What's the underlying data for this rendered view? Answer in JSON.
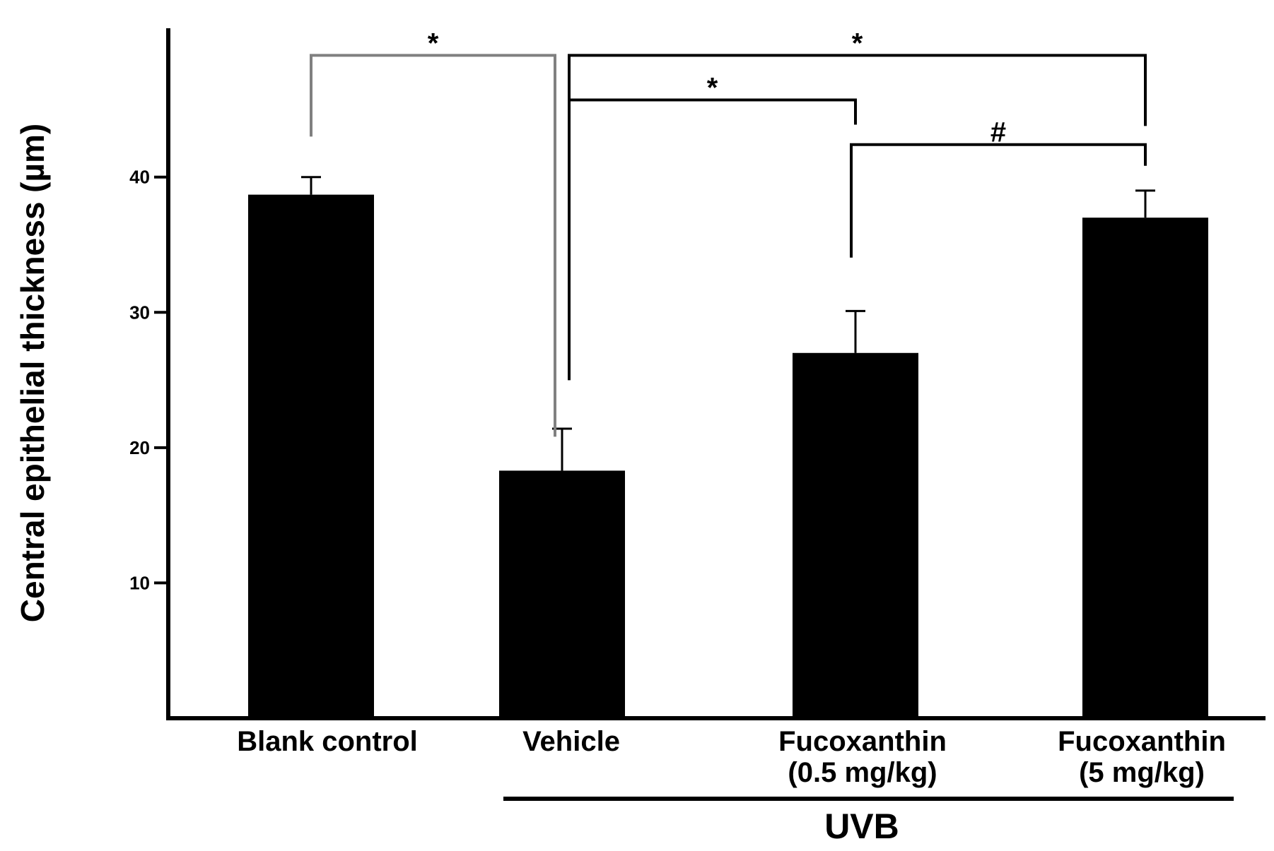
{
  "chart_data": {
    "type": "bar",
    "ylabel": "Central epithelial thickness  (µm)",
    "categories": [
      [
        "Blank control"
      ],
      [
        "Vehicle"
      ],
      [
        "Fucoxanthin",
        "(0.5 mg/kg)"
      ],
      [
        "Fucoxanthin",
        "(5 mg/kg)"
      ]
    ],
    "values": [
      38.7,
      18.3,
      27.0,
      37.0
    ],
    "errors": [
      1.3,
      3.1,
      3.1,
      2.0
    ],
    "yticks": [
      10,
      20,
      30,
      40
    ],
    "ylim": [
      0,
      51
    ],
    "bar_color": "#000000",
    "group": {
      "label": "UVB",
      "from_category": 1,
      "to_category": 3
    },
    "significance": [
      {
        "from": 0,
        "to": 1,
        "label": "*",
        "bracket_y": 49.0,
        "bar_color": "#808080"
      },
      {
        "from": 1,
        "to": 3,
        "label": "*",
        "bracket_y": 49.0,
        "bar_color": "#000000"
      },
      {
        "from": 1,
        "to": 2,
        "label": "*",
        "bracket_y": 45.7,
        "bar_color": "#000000"
      },
      {
        "from": 2,
        "to": 3,
        "label": "#",
        "bracket_y": 42.4,
        "bar_color": "#000000"
      }
    ]
  }
}
